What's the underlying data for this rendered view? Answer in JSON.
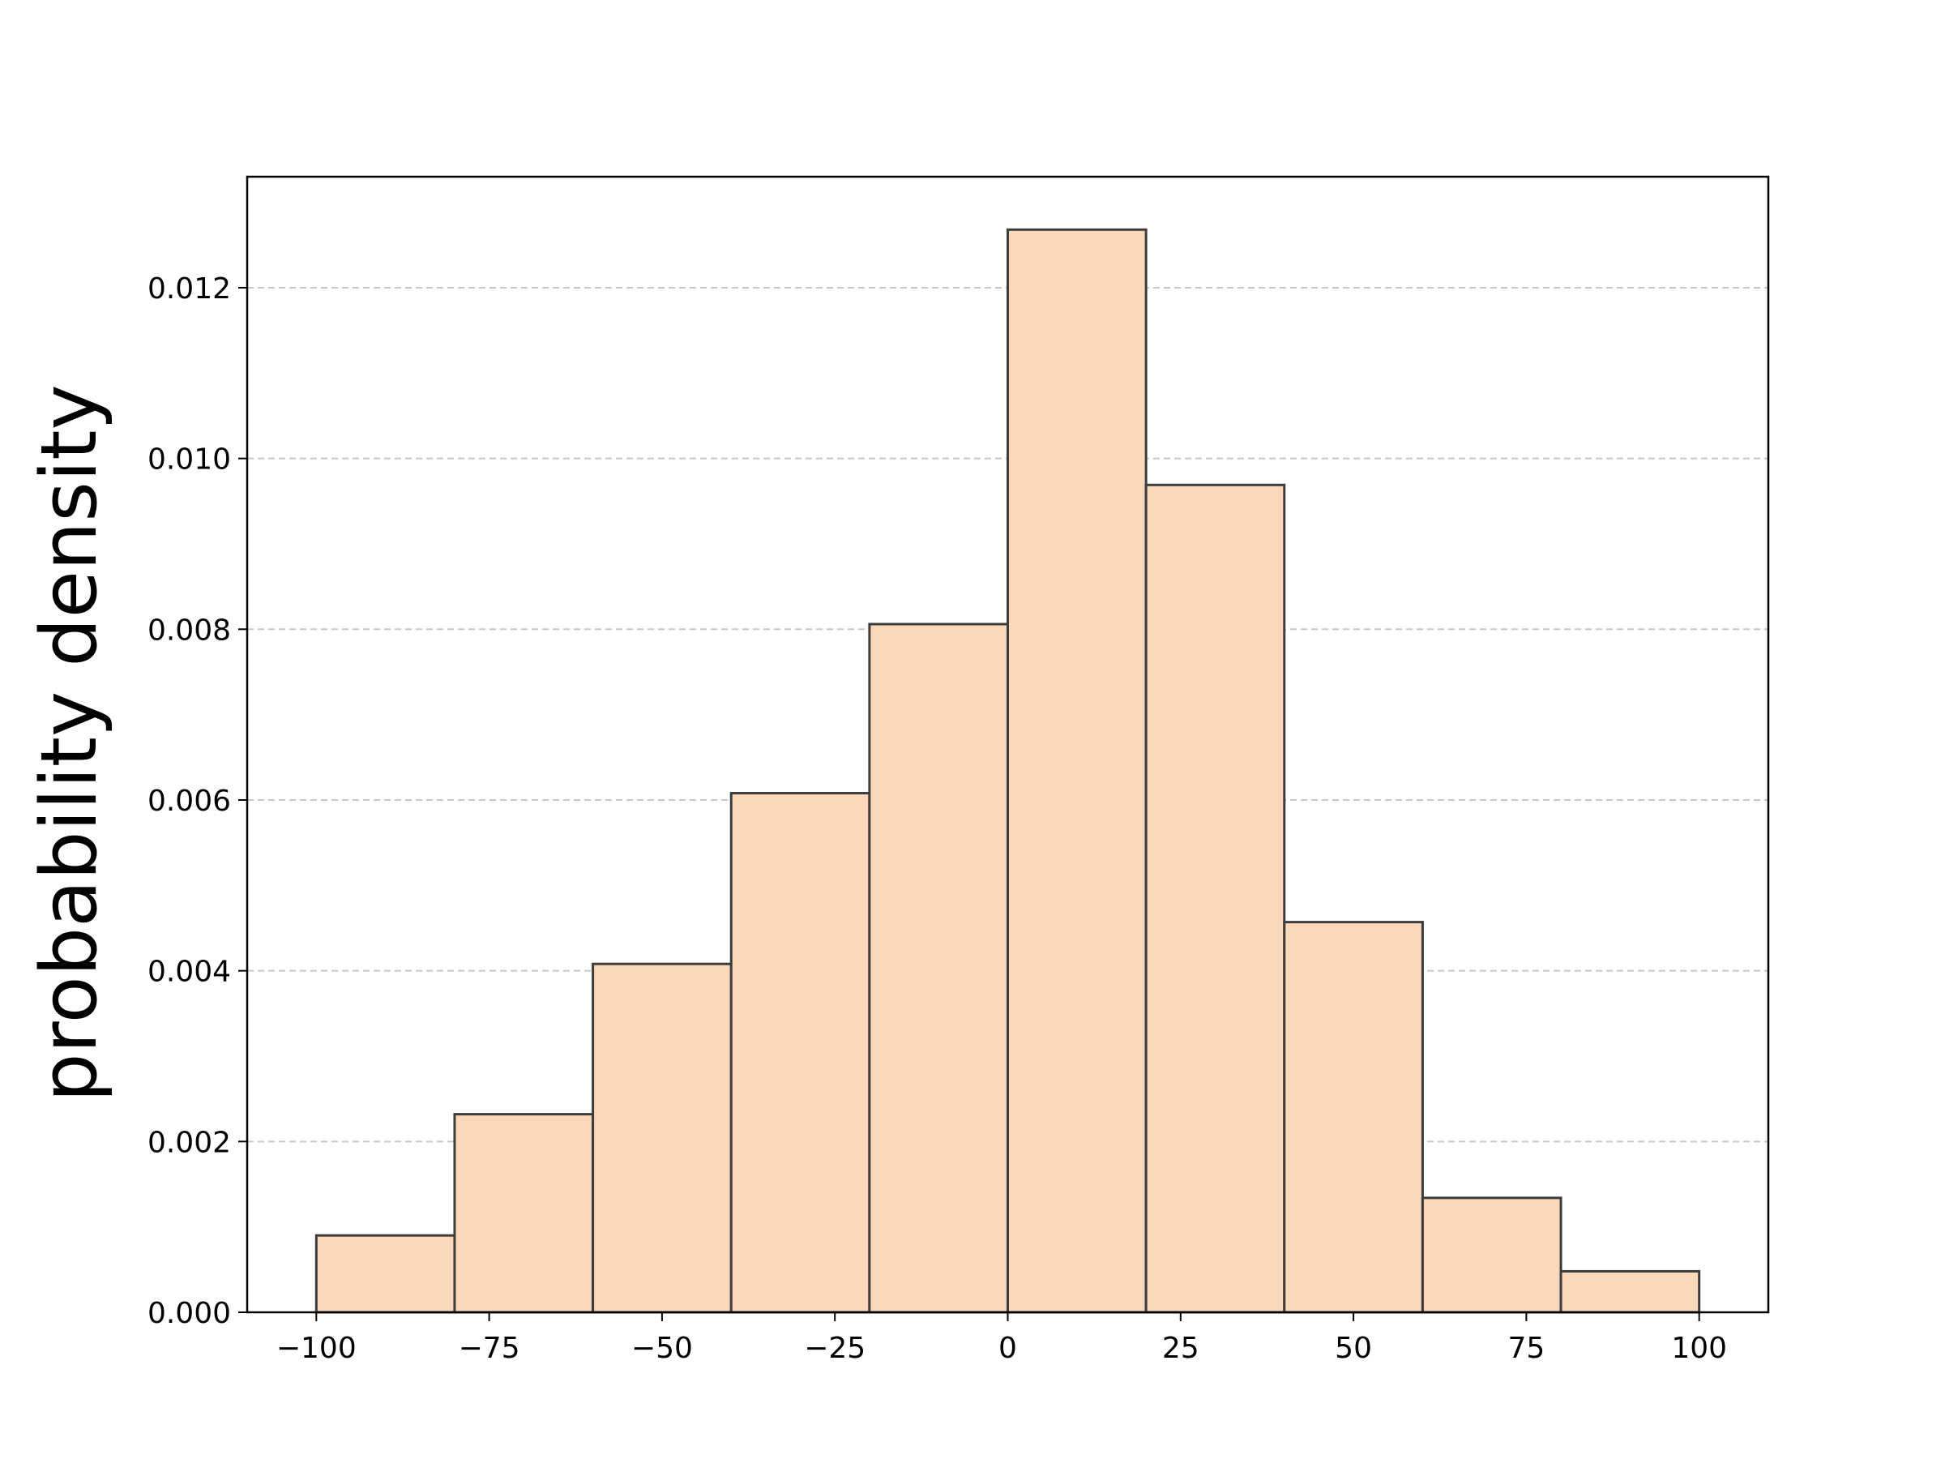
{
  "chart_data": {
    "type": "histogram",
    "y_label": "probability density",
    "bins": [
      -100,
      -80,
      -60,
      -40,
      -20,
      0,
      20,
      40,
      60,
      80,
      100
    ],
    "values": [
      0.0009,
      0.00232,
      0.00408,
      0.00608,
      0.00806,
      0.01268,
      0.00969,
      0.00457,
      0.00134,
      0.00048
    ],
    "color": "#fad8b9",
    "edgecolor": "#3d3d3d",
    "xlim": [
      -110,
      110
    ],
    "ylim": [
      0,
      0.0133
    ],
    "xticks": [
      {
        "value": -100,
        "label": "−100"
      },
      {
        "value": -75,
        "label": "−75"
      },
      {
        "value": -50,
        "label": "−50"
      },
      {
        "value": -25,
        "label": "−25"
      },
      0,
      25,
      50,
      75,
      100
    ],
    "yticks": [
      {
        "value": 0,
        "label": "0.000"
      },
      {
        "value": 0.002,
        "label": "0.002"
      },
      {
        "value": 0.004,
        "label": "0.004"
      },
      {
        "value": 0.006,
        "label": "0.006"
      },
      {
        "value": 0.008,
        "label": "0.008"
      },
      {
        "value": 0.01,
        "label": "0.010"
      },
      {
        "value": 0.012,
        "label": "0.012"
      }
    ],
    "grid": true
  }
}
